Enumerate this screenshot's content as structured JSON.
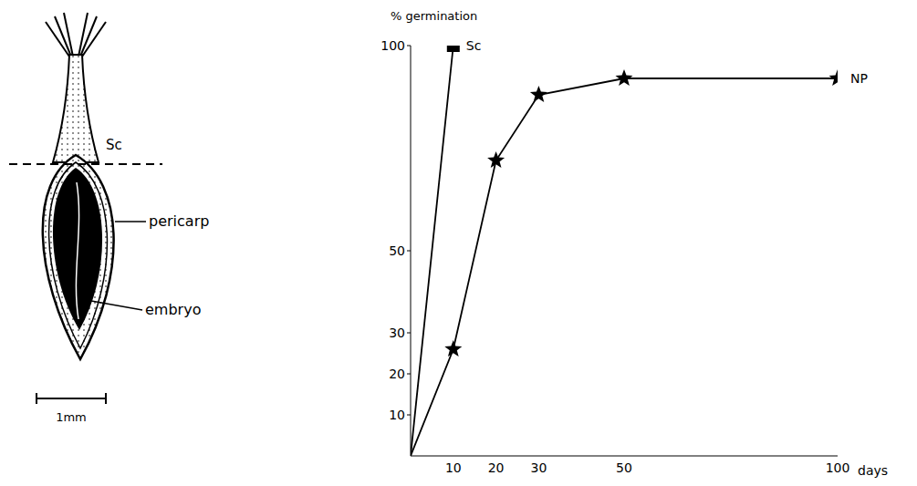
{
  "diagram": {
    "cut_label": "Sc",
    "pericarp_label": "pericarp",
    "embryo_label": "embryo",
    "scale_bar_label": "1mm"
  },
  "chart_data": {
    "type": "line",
    "y_label": "% germination",
    "x_label": "days",
    "xlim": [
      0,
      100
    ],
    "xticks": [
      10,
      20,
      30,
      50,
      100
    ],
    "ylim": [
      0,
      100
    ],
    "yticks": [
      10,
      20,
      30,
      50,
      100
    ],
    "series": [
      {
        "name": "Sc",
        "color": "#000000",
        "marker": "square",
        "x": [
          0,
          10
        ],
        "values": [
          0,
          100
        ]
      },
      {
        "name": "NP",
        "color": "#000000",
        "marker": "star",
        "x": [
          0,
          10,
          20,
          30,
          50,
          100
        ],
        "values": [
          0,
          26,
          72,
          88,
          92,
          92
        ]
      }
    ]
  }
}
